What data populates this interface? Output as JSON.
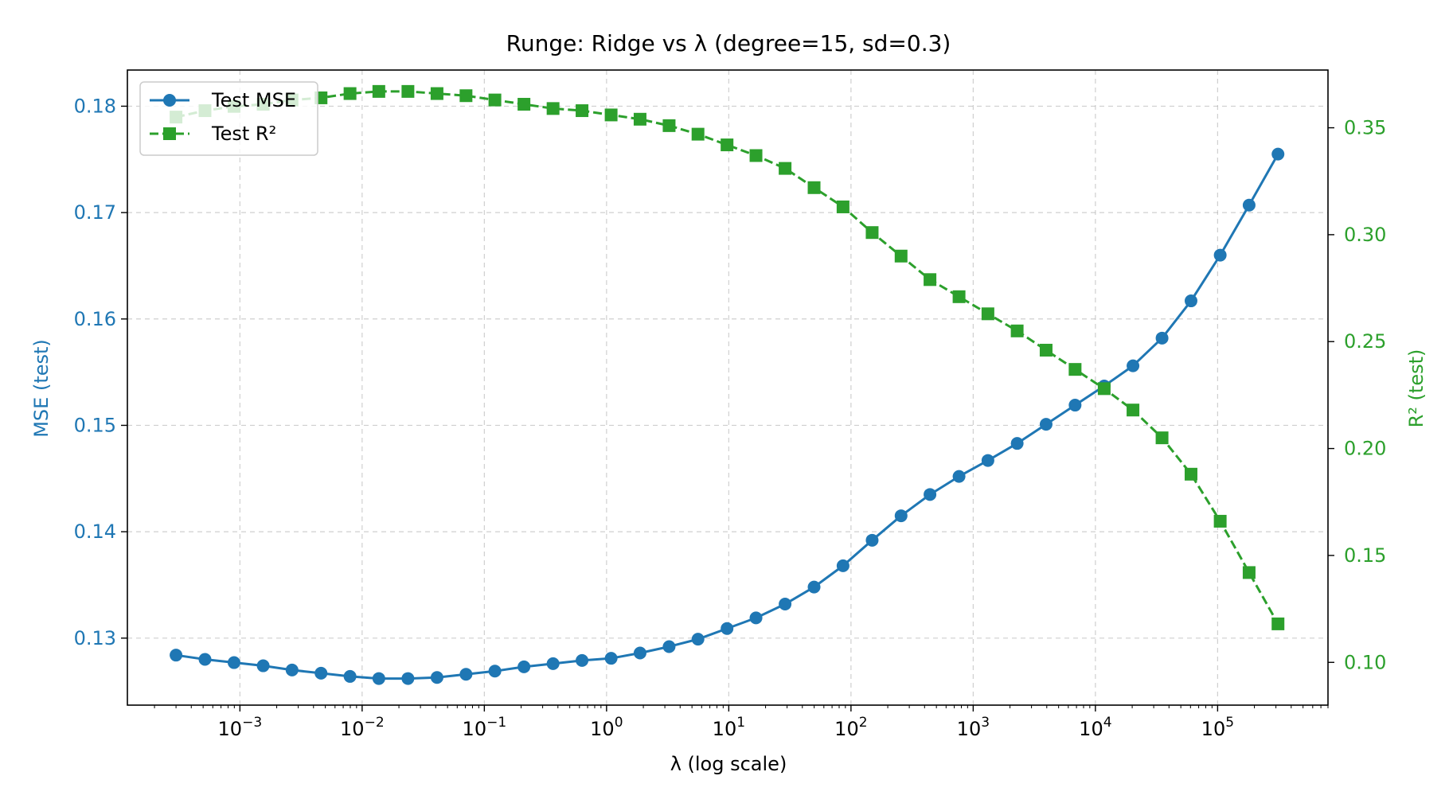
{
  "chart_data": {
    "type": "line",
    "title": "Runge: Ridge vs λ (degree=15, sd=0.3)",
    "xlabel": "λ (log scale)",
    "ylabel_left": "MSE (test)",
    "ylabel_right": "R² (test)",
    "x_scale": "log",
    "xlim": [
      0.00012,
      800000
    ],
    "ylim_left": [
      0.1237,
      0.1834
    ],
    "ylim_right": [
      0.08,
      0.377
    ],
    "x_tick_labels": [
      {
        "value": 0.001,
        "base": "10",
        "exp": "−3"
      },
      {
        "value": 0.01,
        "base": "10",
        "exp": "−2"
      },
      {
        "value": 0.1,
        "base": "10",
        "exp": "−1"
      },
      {
        "value": 1,
        "base": "10",
        "exp": "0"
      },
      {
        "value": 10,
        "base": "10",
        "exp": "1"
      },
      {
        "value": 100,
        "base": "10",
        "exp": "2"
      },
      {
        "value": 1000,
        "base": "10",
        "exp": "3"
      },
      {
        "value": 10000,
        "base": "10",
        "exp": "4"
      },
      {
        "value": 100000,
        "base": "10",
        "exp": "5"
      }
    ],
    "y_left_ticks": [
      0.13,
      0.14,
      0.15,
      0.16,
      0.17,
      0.18
    ],
    "y_left_tick_labels": [
      "0.13",
      "0.14",
      "0.15",
      "0.16",
      "0.17",
      "0.18"
    ],
    "y_right_ticks": [
      0.1,
      0.15,
      0.2,
      0.25,
      0.3,
      0.35
    ],
    "y_right_tick_labels": [
      "0.10",
      "0.15",
      "0.20",
      "0.25",
      "0.30",
      "0.35"
    ],
    "grid": true,
    "legend_position": "top-left",
    "x": [
      0.0003,
      0.000518,
      0.000895,
      0.00155,
      0.00267,
      0.00461,
      0.00796,
      0.0137,
      0.0237,
      0.041,
      0.0708,
      0.122,
      0.211,
      0.365,
      0.63,
      1.09,
      1.88,
      3.25,
      5.6,
      9.68,
      16.7,
      28.9,
      49.9,
      86.1,
      149,
      257,
      443,
      766,
      1320,
      2290,
      3950,
      6820,
      11800,
      20300,
      35100,
      60600,
      105000,
      181000,
      312000
    ],
    "series": [
      {
        "name": "Test MSE",
        "axis": "left",
        "color": "#1f77b4",
        "marker": "circle",
        "line_style": "solid",
        "values": [
          0.1284,
          0.128,
          0.1277,
          0.1274,
          0.127,
          0.1267,
          0.1264,
          0.1262,
          0.1262,
          0.1263,
          0.1266,
          0.1269,
          0.1273,
          0.1276,
          0.1279,
          0.1281,
          0.1286,
          0.1292,
          0.1299,
          0.1309,
          0.1319,
          0.1332,
          0.1348,
          0.1368,
          0.1392,
          0.1415,
          0.1435,
          0.1452,
          0.1467,
          0.1483,
          0.1501,
          0.1519,
          0.1537,
          0.1556,
          0.1582,
          0.1617,
          0.166,
          0.1707,
          0.1755
        ]
      },
      {
        "name": "Test R²",
        "axis": "right",
        "color": "#2ca02c",
        "marker": "square",
        "line_style": "dashed",
        "values": [
          0.355,
          0.358,
          0.36,
          0.361,
          0.363,
          0.364,
          0.366,
          0.367,
          0.367,
          0.366,
          0.365,
          0.363,
          0.361,
          0.359,
          0.358,
          0.356,
          0.354,
          0.351,
          0.347,
          0.342,
          0.337,
          0.331,
          0.322,
          0.313,
          0.301,
          0.29,
          0.279,
          0.271,
          0.263,
          0.255,
          0.246,
          0.237,
          0.228,
          0.218,
          0.205,
          0.188,
          0.166,
          0.142,
          0.118
        ]
      }
    ]
  }
}
